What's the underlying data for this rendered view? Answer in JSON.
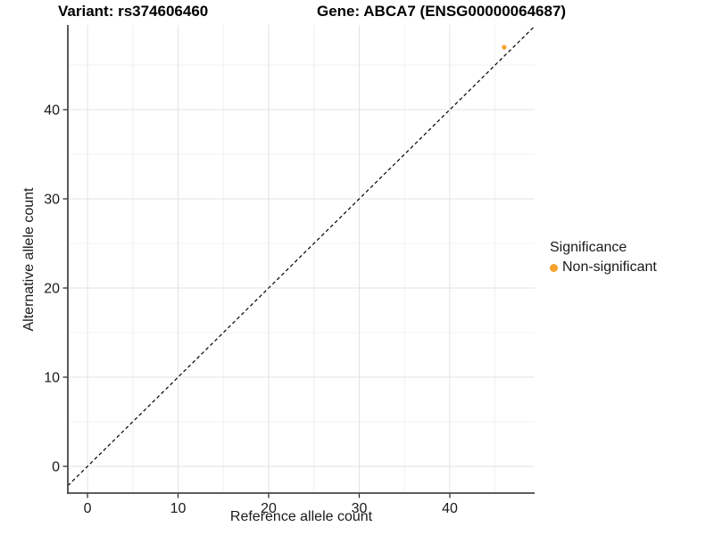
{
  "chart_data": {
    "type": "scatter",
    "title_left": "Variant: rs374606460",
    "title_right": "Gene: ABCA7 (ENSG00000064687)",
    "xlabel": "Reference allele count",
    "ylabel": "Alternative allele count",
    "x_ticks": [
      0,
      10,
      20,
      30,
      40
    ],
    "y_ticks": [
      0,
      10,
      20,
      30,
      40
    ],
    "x_minor_grid": [
      5,
      15,
      25,
      35,
      45
    ],
    "y_minor_grid": [
      5,
      15,
      25,
      35,
      45
    ],
    "xlim": [
      -2.17,
      49.36
    ],
    "ylim": [
      -3.0,
      49.5
    ],
    "grid": "major and minor gridlines, light gray on white background",
    "identity_line": {
      "equation": "y = x",
      "style": "dashed",
      "color": "#000000"
    },
    "series": [
      {
        "name": "Non-significant",
        "marker": "circle",
        "color": "#F9A02B",
        "points": [
          [
            46,
            47
          ]
        ]
      }
    ],
    "legend": {
      "title": "Significance",
      "position": "right",
      "items": [
        {
          "label": "Non-significant",
          "color": "#F9A02B"
        }
      ]
    },
    "colors": {
      "background": "#FFFFFF",
      "axis_line": "#474747",
      "tick_mark": "#333333",
      "text": "#1A1A1A",
      "grid_major": "#E3E3E3",
      "grid_minor": "#F0F0F0"
    }
  }
}
